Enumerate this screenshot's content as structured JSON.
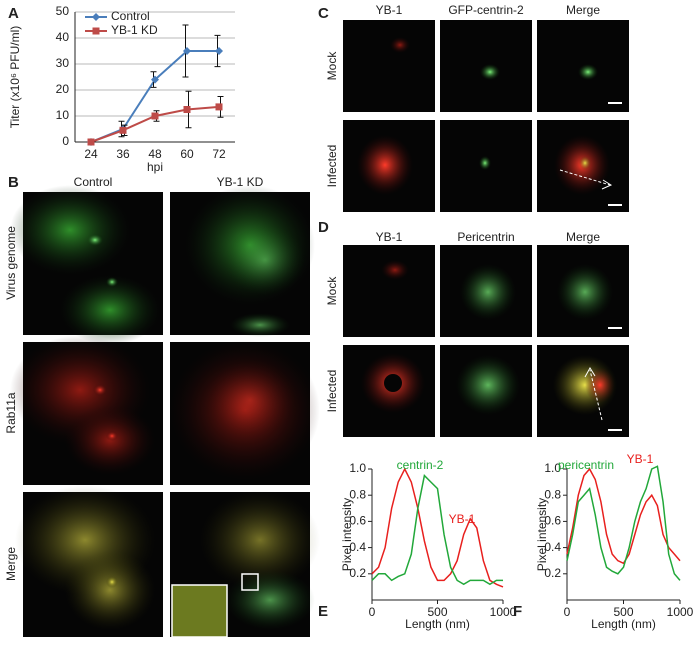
{
  "chart_data": [
    {
      "type": "line",
      "panel": "A",
      "xlabel": "hpi",
      "ylabel": "Titer (x10⁶ PFU/ml)",
      "categories": [
        "24",
        "36",
        "48",
        "60",
        "72"
      ],
      "ylim": [
        0,
        50
      ],
      "yticks": [
        0,
        10,
        20,
        30,
        40,
        50
      ],
      "grid": true,
      "series": [
        {
          "name": "Control",
          "color": "#4a7ebb",
          "marker": "diamond",
          "values": [
            0,
            5,
            24,
            35,
            35
          ],
          "errors": [
            0,
            3,
            3,
            10,
            6
          ]
        },
        {
          "name": "YB-1 KD",
          "color": "#be4b48",
          "marker": "square",
          "values": [
            0,
            4.5,
            10,
            12.5,
            13.5
          ],
          "errors": [
            0,
            2,
            2,
            7,
            4
          ]
        }
      ]
    },
    {
      "type": "line",
      "panel": "E",
      "xlabel": "Length (nm)",
      "ylabel": "Pixel intensity",
      "x": [
        0,
        50,
        100,
        150,
        200,
        250,
        300,
        350,
        400,
        450,
        500,
        550,
        600,
        650,
        700,
        750,
        800,
        850,
        900,
        950,
        1000
      ],
      "xlim": [
        0,
        1000
      ],
      "xticks": [
        0,
        500,
        1000
      ],
      "ylim": [
        0,
        1
      ],
      "yticks": [
        0.2,
        0.4,
        0.6,
        0.8,
        {
          "value": 1,
          "label": "1.0"
        }
      ],
      "series": [
        {
          "name": "YB-1",
          "color": "#e8201e",
          "values": [
            0.2,
            0.25,
            0.4,
            0.7,
            0.9,
            1.0,
            0.9,
            0.7,
            0.45,
            0.25,
            0.15,
            0.15,
            0.2,
            0.3,
            0.5,
            0.62,
            0.55,
            0.3,
            0.15,
            0.12,
            0.1
          ]
        },
        {
          "name": "centrin-2",
          "color": "#22a83a",
          "values": [
            0.15,
            0.2,
            0.2,
            0.15,
            0.18,
            0.2,
            0.35,
            0.7,
            0.95,
            0.9,
            0.85,
            0.5,
            0.25,
            0.15,
            0.12,
            0.15,
            0.15,
            0.15,
            0.12,
            0.15,
            0.15
          ]
        }
      ]
    },
    {
      "type": "line",
      "panel": "F",
      "xlabel": "Length (nm)",
      "ylabel": "Pixel intensity",
      "x": [
        0,
        50,
        100,
        150,
        200,
        250,
        300,
        350,
        400,
        450,
        500,
        550,
        600,
        650,
        700,
        750,
        800,
        850,
        900,
        950,
        1000
      ],
      "xlim": [
        0,
        1000
      ],
      "xticks": [
        0,
        500,
        1000
      ],
      "ylim": [
        0,
        1
      ],
      "yticks": [
        0.2,
        0.4,
        0.6,
        0.8,
        {
          "value": 1,
          "label": "1.0"
        }
      ],
      "series": [
        {
          "name": "YB-1",
          "color": "#e8201e",
          "values": [
            0.35,
            0.55,
            0.8,
            0.95,
            1.0,
            0.92,
            0.75,
            0.5,
            0.35,
            0.3,
            0.28,
            0.35,
            0.5,
            0.65,
            0.75,
            0.8,
            0.72,
            0.5,
            0.4,
            0.35,
            0.3
          ]
        },
        {
          "name": "pericentrin",
          "color": "#22a83a",
          "values": [
            0.3,
            0.5,
            0.75,
            0.8,
            0.85,
            0.65,
            0.4,
            0.25,
            0.22,
            0.2,
            0.25,
            0.4,
            0.6,
            0.75,
            0.85,
            1.0,
            1.02,
            0.75,
            0.35,
            0.2,
            0.15
          ]
        }
      ]
    }
  ],
  "figure": {
    "B": {
      "label": "B",
      "columns": [
        "Control",
        "YB-1 KD"
      ],
      "rows": [
        "Virus genome",
        "Rab11a",
        "Merge"
      ]
    },
    "C": {
      "label": "C",
      "columns": [
        "YB-1",
        "GFP-centrin-2",
        "Merge"
      ],
      "rows": [
        "Mock",
        "Infected"
      ]
    },
    "D": {
      "label": "D",
      "columns": [
        "YB-1",
        "Pericentrin",
        "Merge"
      ],
      "rows": [
        "Mock",
        "Infected"
      ]
    }
  }
}
